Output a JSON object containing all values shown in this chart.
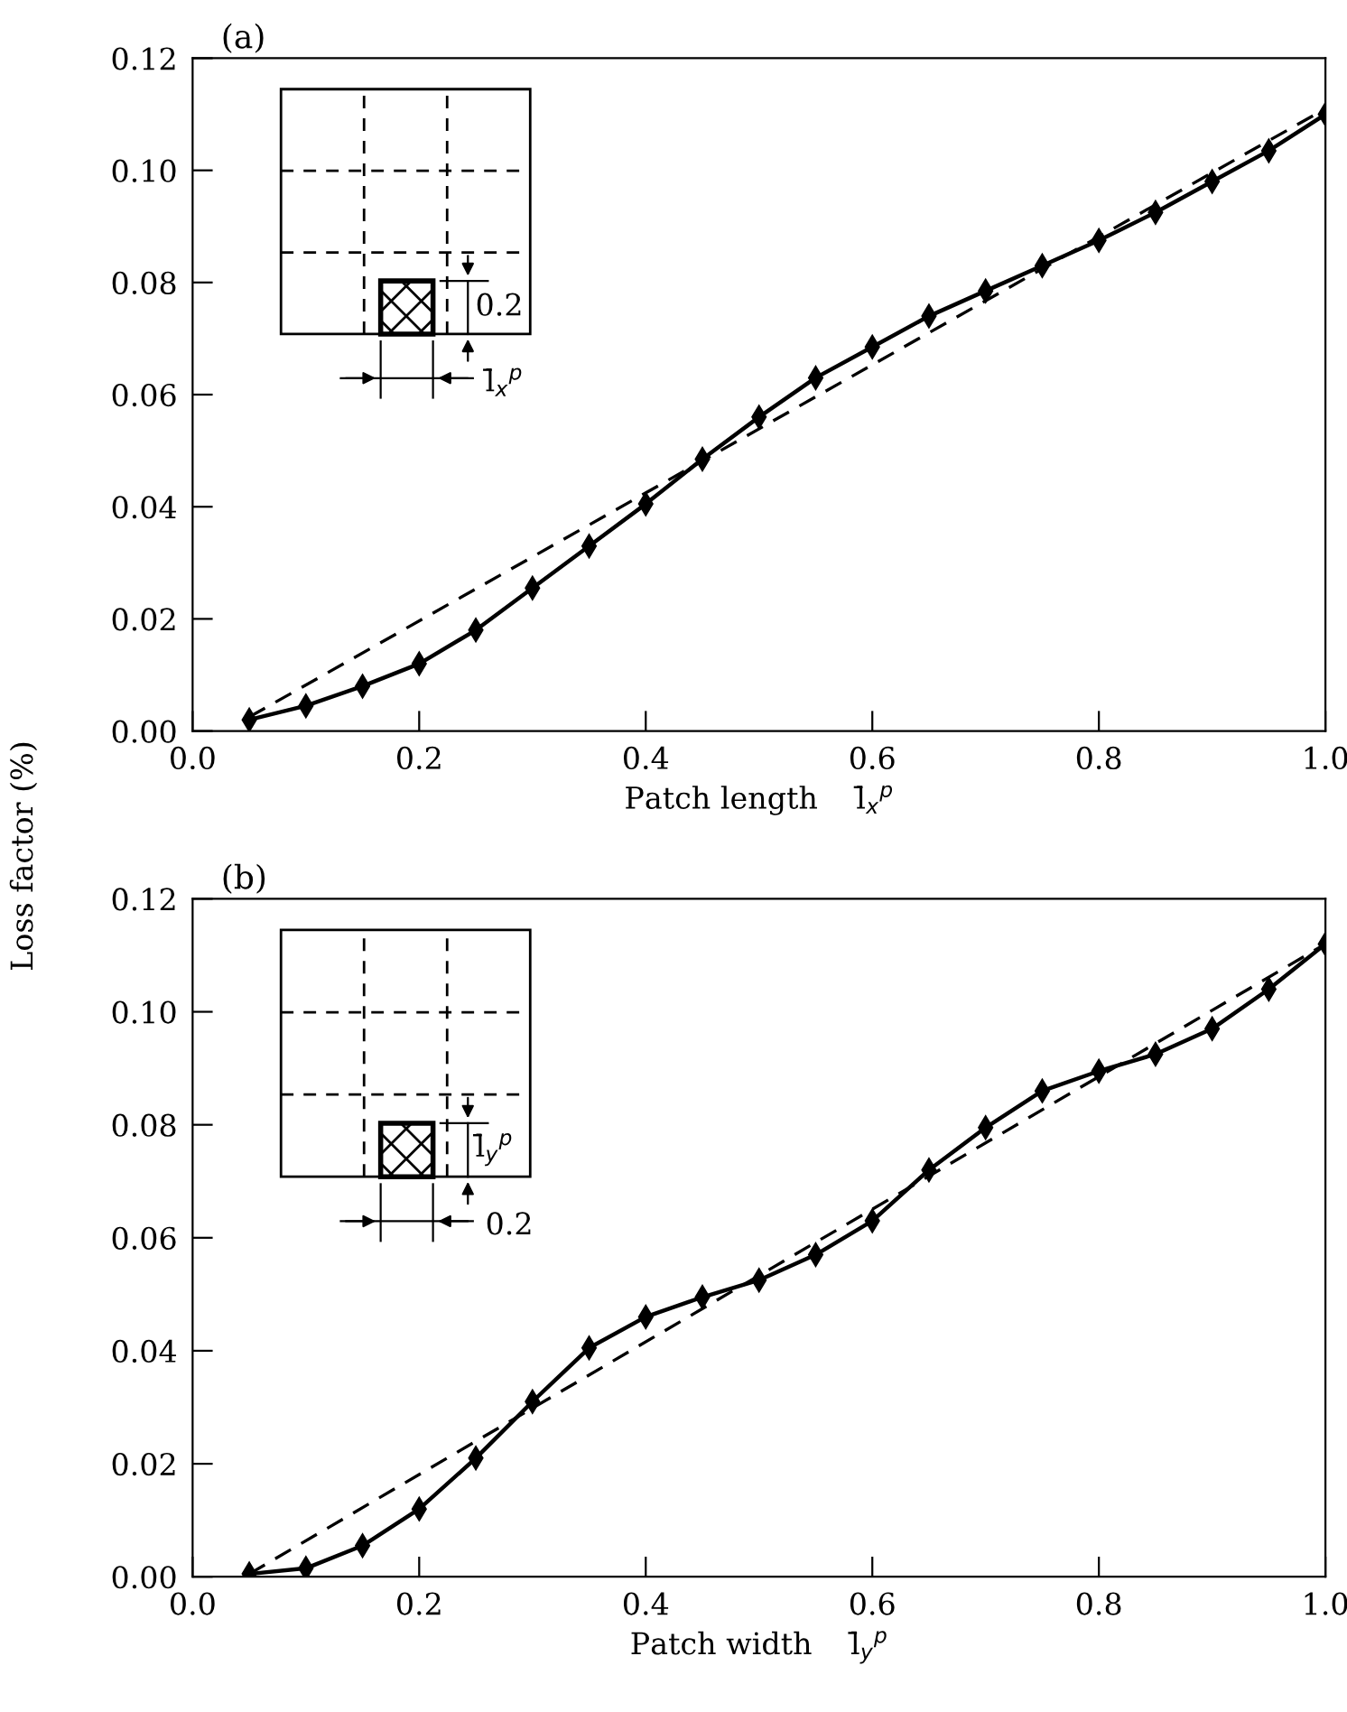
{
  "chart_data": [
    {
      "type": "line",
      "title": "(a)",
      "xlabel": "Patch length    l̄$_{x}$$^{p}$",
      "ylabel": "Loss factor (%)",
      "annotations": [
        "0.2",
        "l̄$_{x}$$^{p}$"
      ],
      "xlim": [
        0.0,
        1.0
      ],
      "ylim": [
        0.0,
        0.12
      ],
      "xticks": [
        {
          "value": 0.0,
          "label": "0.0"
        },
        {
          "value": 0.2,
          "label": "0.2"
        },
        {
          "value": 0.4,
          "label": "0.4"
        },
        {
          "value": 0.6,
          "label": "0.6"
        },
        {
          "value": 0.8,
          "label": "0.8"
        },
        {
          "value": 1.0,
          "label": "1.0"
        }
      ],
      "yticks": [
        {
          "value": 0.0,
          "label": "0.00"
        },
        {
          "value": 0.02,
          "label": "0.02"
        },
        {
          "value": 0.04,
          "label": "0.04"
        },
        {
          "value": 0.06,
          "label": "0.06"
        },
        {
          "value": 0.08,
          "label": "0.08"
        },
        {
          "value": 0.1,
          "label": "0.10"
        },
        {
          "value": 0.12,
          "label": "0.12"
        }
      ],
      "tick_labels": "xy",
      "grid": false,
      "series": [
        {
          "color": "#000000",
          "marker": "diamond",
          "line_style": "solid",
          "x": [
            0.05,
            0.1,
            0.15,
            0.2,
            0.25,
            0.3,
            0.35,
            0.4,
            0.45,
            0.5,
            0.55,
            0.6,
            0.65,
            0.7,
            0.75,
            0.8,
            0.85,
            0.9,
            0.95,
            1.0
          ],
          "values": [
            0.002,
            0.0045,
            0.008,
            0.012,
            0.018,
            0.0255,
            0.033,
            0.0405,
            0.0485,
            0.056,
            0.063,
            0.0685,
            0.074,
            0.0785,
            0.083,
            0.0875,
            0.0925,
            0.098,
            0.1035,
            0.11
          ]
        },
        {
          "color": "#000000",
          "marker": "none",
          "line_style": "dashed",
          "x": [
            0.05,
            1.0
          ],
          "values": [
            0.0025,
            0.111
          ]
        }
      ]
    },
    {
      "type": "line",
      "title": "(b)",
      "xlabel": "Patch width    l̄$_{y}$$^{p}$",
      "annotations": [
        "l̄$_{y}$$^{p}$",
        "0.2"
      ],
      "xlim": [
        0.0,
        1.0
      ],
      "ylim": [
        0.0,
        0.12
      ],
      "xticks": [
        {
          "value": 0.0,
          "label": "0.0"
        },
        {
          "value": 0.2,
          "label": "0.2"
        },
        {
          "value": 0.4,
          "label": "0.4"
        },
        {
          "value": 0.6,
          "label": "0.6"
        },
        {
          "value": 0.8,
          "label": "0.8"
        },
        {
          "value": 1.0,
          "label": "1.0"
        }
      ],
      "yticks": [
        {
          "value": 0.0,
          "label": "0.00"
        },
        {
          "value": 0.02,
          "label": "0.02"
        },
        {
          "value": 0.04,
          "label": "0.04"
        },
        {
          "value": 0.06,
          "label": "0.06"
        },
        {
          "value": 0.08,
          "label": "0.08"
        },
        {
          "value": 0.1,
          "label": "0.10"
        },
        {
          "value": 0.12,
          "label": "0.12"
        }
      ],
      "tick_labels": "xy",
      "grid": false,
      "series": [
        {
          "color": "#000000",
          "marker": "diamond",
          "line_style": "solid",
          "x": [
            0.05,
            0.1,
            0.15,
            0.2,
            0.25,
            0.3,
            0.35,
            0.4,
            0.45,
            0.5,
            0.55,
            0.6,
            0.65,
            0.7,
            0.75,
            0.8,
            0.85,
            0.9,
            0.95,
            1.0
          ],
          "values": [
            0.0005,
            0.0015,
            0.0055,
            0.012,
            0.021,
            0.031,
            0.0405,
            0.046,
            0.0495,
            0.0525,
            0.057,
            0.063,
            0.072,
            0.0795,
            0.086,
            0.0895,
            0.0925,
            0.097,
            0.104,
            0.112
          ]
        },
        {
          "color": "#000000",
          "marker": "none",
          "line_style": "dashed",
          "x": [
            0.05,
            1.0
          ],
          "values": [
            0.0005,
            0.112
          ]
        }
      ]
    }
  ]
}
